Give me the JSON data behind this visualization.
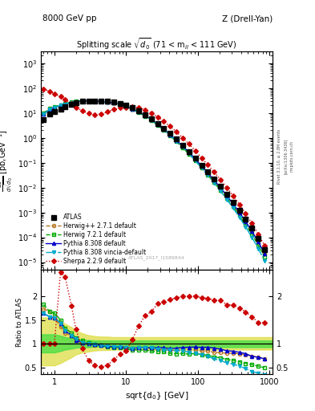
{
  "x_atlas": [
    0.707,
    0.866,
    1.0,
    1.22,
    1.41,
    1.73,
    2.0,
    2.45,
    3.0,
    3.67,
    4.47,
    5.48,
    6.71,
    8.22,
    10.0,
    12.2,
    15.0,
    18.4,
    22.4,
    27.5,
    33.6,
    41.2,
    50.4,
    61.7,
    75.5,
    92.5,
    113.0,
    138.0,
    169.0,
    207.0,
    254.0,
    311.0,
    380.0,
    465.0,
    570.0,
    698.0,
    855.0
  ],
  "y_atlas": [
    5.5,
    9.0,
    11.0,
    14.0,
    18.0,
    22.0,
    26.0,
    29.0,
    30.0,
    30.0,
    30.0,
    29.0,
    27.0,
    24.0,
    20.0,
    16.0,
    12.0,
    8.5,
    6.0,
    3.8,
    2.4,
    1.5,
    0.88,
    0.5,
    0.28,
    0.15,
    0.08,
    0.042,
    0.022,
    0.011,
    0.0055,
    0.0026,
    0.0012,
    0.00054,
    0.00023,
    9e-05,
    3.2e-05
  ],
  "x_mc": [
    0.707,
    0.866,
    1.0,
    1.22,
    1.41,
    1.73,
    2.0,
    2.45,
    3.0,
    3.67,
    4.47,
    5.48,
    6.71,
    8.22,
    10.0,
    12.2,
    15.0,
    18.4,
    22.4,
    27.5,
    33.6,
    41.2,
    50.4,
    61.7,
    75.5,
    92.5,
    113.0,
    138.0,
    169.0,
    207.0,
    254.0,
    311.0,
    380.0,
    465.0,
    570.0,
    698.0,
    855.0
  ],
  "y_herwig_pp": [
    9.5,
    15.0,
    17.0,
    19.0,
    22.0,
    26.0,
    28.0,
    30.0,
    30.0,
    29.0,
    29.0,
    27.5,
    25.5,
    22.5,
    18.5,
    14.5,
    11.0,
    7.8,
    5.4,
    3.4,
    2.1,
    1.3,
    0.76,
    0.44,
    0.24,
    0.13,
    0.068,
    0.036,
    0.018,
    0.009,
    0.0044,
    0.0021,
    0.00095,
    0.00042,
    0.00017,
    6.5e-05,
    2.2e-05
  ],
  "y_herwig72": [
    10.0,
    15.0,
    18.0,
    21.0,
    24.0,
    27.0,
    29.0,
    31.0,
    30.5,
    29.5,
    29.0,
    27.0,
    25.0,
    22.0,
    18.0,
    14.0,
    10.5,
    7.4,
    5.1,
    3.2,
    2.0,
    1.2,
    0.7,
    0.4,
    0.22,
    0.12,
    0.062,
    0.032,
    0.016,
    0.0078,
    0.0037,
    0.0017,
    0.00075,
    0.00032,
    0.00013,
    4.8e-05,
    1.6e-05
  ],
  "y_pythia308": [
    9.0,
    14.0,
    17.0,
    20.0,
    23.0,
    26.0,
    28.0,
    30.0,
    30.0,
    29.5,
    29.0,
    27.5,
    25.5,
    22.5,
    18.5,
    14.5,
    11.0,
    7.8,
    5.5,
    3.5,
    2.2,
    1.35,
    0.8,
    0.46,
    0.26,
    0.14,
    0.074,
    0.039,
    0.02,
    0.0098,
    0.0047,
    0.0022,
    0.00099,
    0.00043,
    0.00017,
    6.5e-05,
    2.2e-05
  ],
  "y_pythia308v": [
    9.0,
    14.0,
    17.0,
    20.0,
    23.0,
    26.0,
    28.5,
    30.0,
    30.0,
    29.5,
    29.0,
    27.5,
    25.5,
    22.5,
    18.5,
    14.5,
    11.0,
    7.8,
    5.5,
    3.4,
    2.1,
    1.3,
    0.75,
    0.43,
    0.23,
    0.12,
    0.062,
    0.031,
    0.015,
    0.0072,
    0.0033,
    0.0015,
    0.00064,
    0.00026,
    9.7e-05,
    3.5e-05,
    1.1e-05
  ],
  "y_sherpa": [
    90.0,
    75.0,
    60.0,
    45.0,
    34.0,
    24.0,
    17.0,
    12.0,
    9.5,
    8.5,
    9.0,
    11.0,
    14.0,
    16.0,
    17.0,
    17.5,
    16.5,
    13.5,
    10.0,
    7.0,
    4.5,
    2.9,
    1.72,
    1.0,
    0.56,
    0.3,
    0.157,
    0.082,
    0.042,
    0.021,
    0.01,
    0.0047,
    0.0021,
    0.0009,
    0.00036,
    0.00013,
    4.6e-05
  ],
  "ratio_herwig_pp": [
    1.73,
    1.67,
    1.55,
    1.36,
    1.22,
    1.18,
    1.08,
    1.03,
    1.0,
    0.97,
    0.97,
    0.95,
    0.94,
    0.94,
    0.93,
    0.91,
    0.92,
    0.92,
    0.9,
    0.89,
    0.875,
    0.867,
    0.864,
    0.88,
    0.857,
    0.867,
    0.85,
    0.857,
    0.82,
    0.818,
    0.8,
    0.808,
    0.792,
    0.778,
    0.739,
    0.722,
    0.688
  ],
  "ratio_herwig72": [
    1.82,
    1.67,
    1.64,
    1.5,
    1.33,
    1.23,
    1.12,
    1.07,
    1.02,
    0.983,
    0.967,
    0.931,
    0.926,
    0.917,
    0.9,
    0.875,
    0.875,
    0.871,
    0.85,
    0.842,
    0.833,
    0.8,
    0.795,
    0.8,
    0.786,
    0.8,
    0.775,
    0.762,
    0.727,
    0.709,
    0.673,
    0.654,
    0.625,
    0.593,
    0.565,
    0.533,
    0.5
  ],
  "ratio_pythia308": [
    1.64,
    1.56,
    1.55,
    1.43,
    1.28,
    1.18,
    1.08,
    1.03,
    1.0,
    0.983,
    0.967,
    0.948,
    0.944,
    0.938,
    0.925,
    0.906,
    0.917,
    0.918,
    0.917,
    0.921,
    0.917,
    0.9,
    0.909,
    0.92,
    0.929,
    0.933,
    0.925,
    0.929,
    0.909,
    0.891,
    0.855,
    0.846,
    0.825,
    0.796,
    0.739,
    0.722,
    0.688
  ],
  "ratio_pythia308v": [
    1.64,
    1.56,
    1.55,
    1.43,
    1.28,
    1.18,
    1.1,
    1.03,
    1.0,
    0.983,
    0.967,
    0.948,
    0.944,
    0.938,
    0.925,
    0.906,
    0.917,
    0.918,
    0.917,
    0.895,
    0.875,
    0.867,
    0.852,
    0.86,
    0.821,
    0.8,
    0.775,
    0.738,
    0.682,
    0.655,
    0.6,
    0.577,
    0.533,
    0.481,
    0.422,
    0.389,
    0.344
  ],
  "ratio_sherpa": [
    1.0,
    1.0,
    1.0,
    2.5,
    2.4,
    1.8,
    1.3,
    0.9,
    0.65,
    0.55,
    0.52,
    0.55,
    0.67,
    0.78,
    0.85,
    1.09,
    1.375,
    1.59,
    1.67,
    1.84,
    1.875,
    1.933,
    1.955,
    2.0,
    2.0,
    2.0,
    1.963,
    1.952,
    1.909,
    1.909,
    1.818,
    1.808,
    1.75,
    1.667,
    1.565,
    1.444,
    1.438
  ],
  "band_x": [
    0.65,
    1.0,
    1.22,
    1.41,
    1.73,
    2.0,
    2.45,
    3.0,
    3.67,
    4.47,
    5.48,
    6.71,
    8.22,
    10.0,
    12.2,
    15.0,
    18.4,
    22.4,
    27.5,
    33.6,
    41.2,
    50.4,
    61.7,
    75.5,
    92.5,
    113.0,
    138.0,
    169.0,
    207.0,
    254.0,
    311.0,
    380.0,
    465.0,
    570.0,
    698.0,
    855.0,
    1100.0
  ],
  "band_green_lo": [
    0.82,
    0.82,
    0.85,
    0.88,
    0.9,
    0.92,
    0.93,
    0.93,
    0.94,
    0.94,
    0.94,
    0.94,
    0.94,
    0.94,
    0.94,
    0.93,
    0.93,
    0.93,
    0.93,
    0.93,
    0.93,
    0.93,
    0.93,
    0.93,
    0.93,
    0.93,
    0.93,
    0.93,
    0.93,
    0.93,
    0.93,
    0.93,
    0.93,
    0.93,
    0.93,
    0.93,
    0.93
  ],
  "band_green_hi": [
    1.2,
    1.2,
    1.17,
    1.14,
    1.12,
    1.1,
    1.08,
    1.08,
    1.07,
    1.07,
    1.07,
    1.07,
    1.07,
    1.07,
    1.07,
    1.07,
    1.07,
    1.07,
    1.07,
    1.07,
    1.07,
    1.07,
    1.07,
    1.07,
    1.07,
    1.07,
    1.07,
    1.07,
    1.07,
    1.07,
    1.07,
    1.07,
    1.07,
    1.07,
    1.07,
    1.07,
    1.07
  ],
  "band_yellow_lo": [
    0.55,
    0.55,
    0.6,
    0.65,
    0.72,
    0.78,
    0.82,
    0.84,
    0.86,
    0.87,
    0.87,
    0.88,
    0.88,
    0.88,
    0.88,
    0.88,
    0.88,
    0.88,
    0.88,
    0.88,
    0.88,
    0.88,
    0.88,
    0.88,
    0.88,
    0.88,
    0.88,
    0.88,
    0.88,
    0.88,
    0.88,
    0.88,
    0.88,
    0.88,
    0.88,
    0.88,
    0.88
  ],
  "band_yellow_hi": [
    1.55,
    1.55,
    1.48,
    1.42,
    1.35,
    1.28,
    1.22,
    1.18,
    1.16,
    1.15,
    1.15,
    1.14,
    1.14,
    1.14,
    1.14,
    1.14,
    1.14,
    1.14,
    1.14,
    1.14,
    1.14,
    1.14,
    1.14,
    1.14,
    1.14,
    1.14,
    1.14,
    1.14,
    1.14,
    1.14,
    1.14,
    1.14,
    1.14,
    1.14,
    1.14,
    1.14,
    1.14
  ],
  "color_atlas": "#000000",
  "color_herwig_pp": "#b87820",
  "color_herwig72": "#00aa00",
  "color_pythia308": "#0000cc",
  "color_pythia308v": "#00aacc",
  "color_sherpa": "#cc0000",
  "color_band_green": "#44dd44",
  "color_band_yellow": "#dddd44"
}
